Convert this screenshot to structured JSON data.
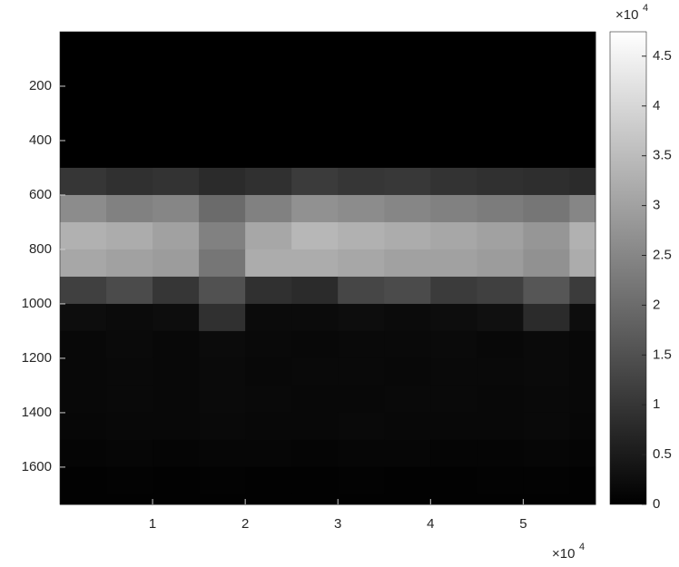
{
  "chart_data": {
    "type": "heatmap",
    "x_bins": [
      0,
      5000,
      10000,
      15000,
      20000,
      25000,
      30000,
      35000,
      40000,
      45000,
      50000,
      55000,
      57800
    ],
    "y_bins": [
      0,
      100,
      200,
      300,
      400,
      500,
      600,
      700,
      800,
      900,
      1000,
      1100,
      1200,
      1300,
      1400,
      1500,
      1600,
      1700,
      1737
    ],
    "z": [
      [
        0,
        0,
        0,
        0,
        0,
        0,
        0,
        0,
        0,
        0,
        0,
        0
      ],
      [
        0,
        0,
        0,
        0,
        0,
        0,
        0,
        0,
        0,
        0,
        0,
        0
      ],
      [
        0,
        0,
        0,
        0,
        0,
        0,
        0,
        0,
        0,
        0,
        0,
        0
      ],
      [
        0,
        0,
        0,
        0,
        0,
        0,
        0,
        0,
        0,
        0,
        0,
        0
      ],
      [
        0,
        0,
        0,
        0,
        0,
        0,
        0,
        0,
        0,
        0,
        0,
        0
      ],
      [
        10000,
        9000,
        9500,
        8000,
        9000,
        11000,
        10000,
        10500,
        9500,
        9000,
        8500,
        8000
      ],
      [
        26000,
        24000,
        25000,
        20000,
        24000,
        27000,
        26000,
        25000,
        24000,
        23000,
        22000,
        25000
      ],
      [
        33000,
        32000,
        30000,
        24000,
        31000,
        34000,
        33000,
        32000,
        31000,
        30000,
        28000,
        33000
      ],
      [
        31000,
        30000,
        29000,
        22000,
        32000,
        32000,
        31000,
        30000,
        30000,
        29000,
        27000,
        32000
      ],
      [
        12000,
        14000,
        10000,
        15000,
        9000,
        8000,
        13000,
        14000,
        11000,
        12000,
        16000,
        11000
      ],
      [
        2500,
        2000,
        2500,
        9000,
        2000,
        2000,
        2500,
        2000,
        2500,
        3000,
        8000,
        2500
      ],
      [
        1500,
        1800,
        1400,
        2000,
        1600,
        1500,
        1700,
        1600,
        1800,
        1500,
        1900,
        1400
      ],
      [
        1400,
        1700,
        1500,
        1900,
        1500,
        1600,
        1600,
        1500,
        1700,
        1600,
        1800,
        1500
      ],
      [
        1500,
        1600,
        1400,
        1800,
        1700,
        1500,
        1500,
        1600,
        1600,
        1500,
        1700,
        1400
      ],
      [
        1300,
        1500,
        1400,
        1600,
        1500,
        1400,
        1600,
        1500,
        1500,
        1400,
        1600,
        1300
      ],
      [
        1000,
        1100,
        1000,
        1200,
        1100,
        1000,
        1100,
        1100,
        1000,
        1000,
        1200,
        1000
      ],
      [
        400,
        500,
        400,
        500,
        400,
        400,
        500,
        400,
        400,
        500,
        500,
        400
      ],
      [
        300,
        300,
        300,
        400,
        300,
        300,
        300,
        300,
        300,
        300,
        400,
        300
      ]
    ],
    "xlim": [
      0,
      57800
    ],
    "ylim": [
      0,
      1737
    ],
    "y_reversed": true,
    "clim": [
      0,
      47450
    ],
    "xticks": [
      {
        "value": 10000,
        "label": "1"
      },
      {
        "value": 20000,
        "label": "2"
      },
      {
        "value": 30000,
        "label": "3"
      },
      {
        "value": 40000,
        "label": "4"
      },
      {
        "value": 50000,
        "label": "5"
      }
    ],
    "yticks": [
      200,
      400,
      600,
      800,
      1000,
      1200,
      1400,
      1600
    ],
    "cticks": [
      0,
      {
        "value": 5000,
        "label": "0.5"
      },
      {
        "value": 10000,
        "label": "1"
      },
      {
        "value": 15000,
        "label": "1.5"
      },
      {
        "value": 20000,
        "label": "2"
      },
      {
        "value": 25000,
        "label": "2.5"
      },
      {
        "value": 30000,
        "label": "3"
      },
      {
        "value": 35000,
        "label": "3.5"
      },
      {
        "value": 40000,
        "label": "4"
      },
      {
        "value": 45000,
        "label": "4.5"
      }
    ],
    "x_exponent": {
      "base": "×10",
      "power": "4"
    },
    "c_exponent": {
      "base": "×10",
      "power": "4"
    },
    "colormap": [
      "#000000",
      "#ffffff"
    ]
  }
}
